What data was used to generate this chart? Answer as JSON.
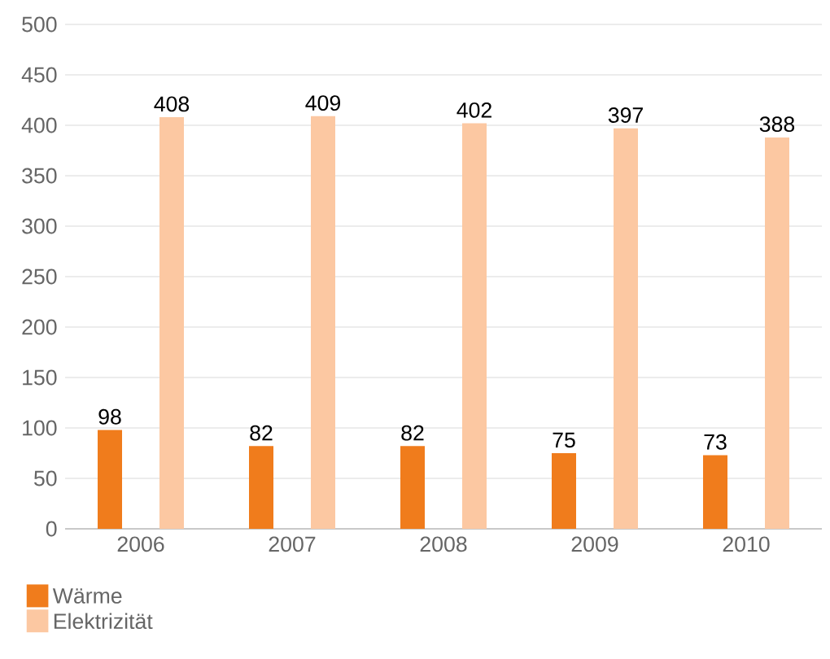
{
  "chart_data": {
    "type": "bar",
    "categories": [
      "2006",
      "2007",
      "2008",
      "2009",
      "2010"
    ],
    "series": [
      {
        "name": "Wärme",
        "color": "#f07c1c",
        "values": [
          98,
          82,
          82,
          75,
          73
        ]
      },
      {
        "name": "Elektrizität",
        "color": "#fcc8a2",
        "values": [
          408,
          409,
          402,
          397,
          388
        ]
      }
    ],
    "ylim": [
      0,
      500
    ],
    "yticks": [
      0,
      50,
      100,
      150,
      200,
      250,
      300,
      350,
      400,
      450,
      500
    ],
    "grid": "y",
    "legend": "bottom left",
    "data_labels": true
  }
}
